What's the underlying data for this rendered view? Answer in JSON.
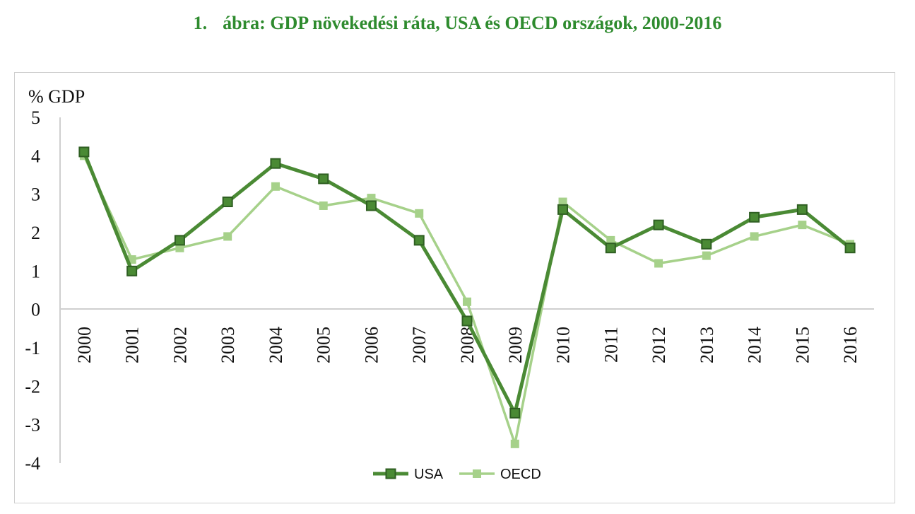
{
  "figure": {
    "number": "1.",
    "title": "ábra: GDP növekedési ráta, USA és OECD országok, 2000-2016"
  },
  "chart_data": {
    "type": "line",
    "title": "ábra: GDP növekedési ráta, USA és OECD országok, 2000-2016",
    "ylabel": "% GDP",
    "xlabel": "",
    "ylim": [
      -4,
      5
    ],
    "yticks": [
      "5",
      "4",
      "3",
      "2",
      "1",
      "0",
      "-1",
      "-2",
      "-3",
      "-4"
    ],
    "categories": [
      "2000",
      "2001",
      "2002",
      "2003",
      "2004",
      "2005",
      "2006",
      "2007",
      "2008",
      "2009",
      "2010",
      "2011",
      "2012",
      "2013",
      "2014",
      "2015",
      "2016"
    ],
    "legend_position": "bottom-center",
    "series": [
      {
        "name": "USA",
        "color": "#4a8a34",
        "values": [
          4.1,
          1.0,
          1.8,
          2.8,
          3.8,
          3.4,
          2.7,
          1.8,
          -0.3,
          -2.7,
          2.6,
          1.6,
          2.2,
          1.7,
          2.4,
          2.6,
          1.6
        ]
      },
      {
        "name": "OECD",
        "color": "#a6d18a",
        "values": [
          4.0,
          1.3,
          1.6,
          1.9,
          3.2,
          2.7,
          2.9,
          2.5,
          0.2,
          -3.5,
          2.8,
          1.8,
          1.2,
          1.4,
          1.9,
          2.2,
          1.7
        ]
      }
    ]
  }
}
